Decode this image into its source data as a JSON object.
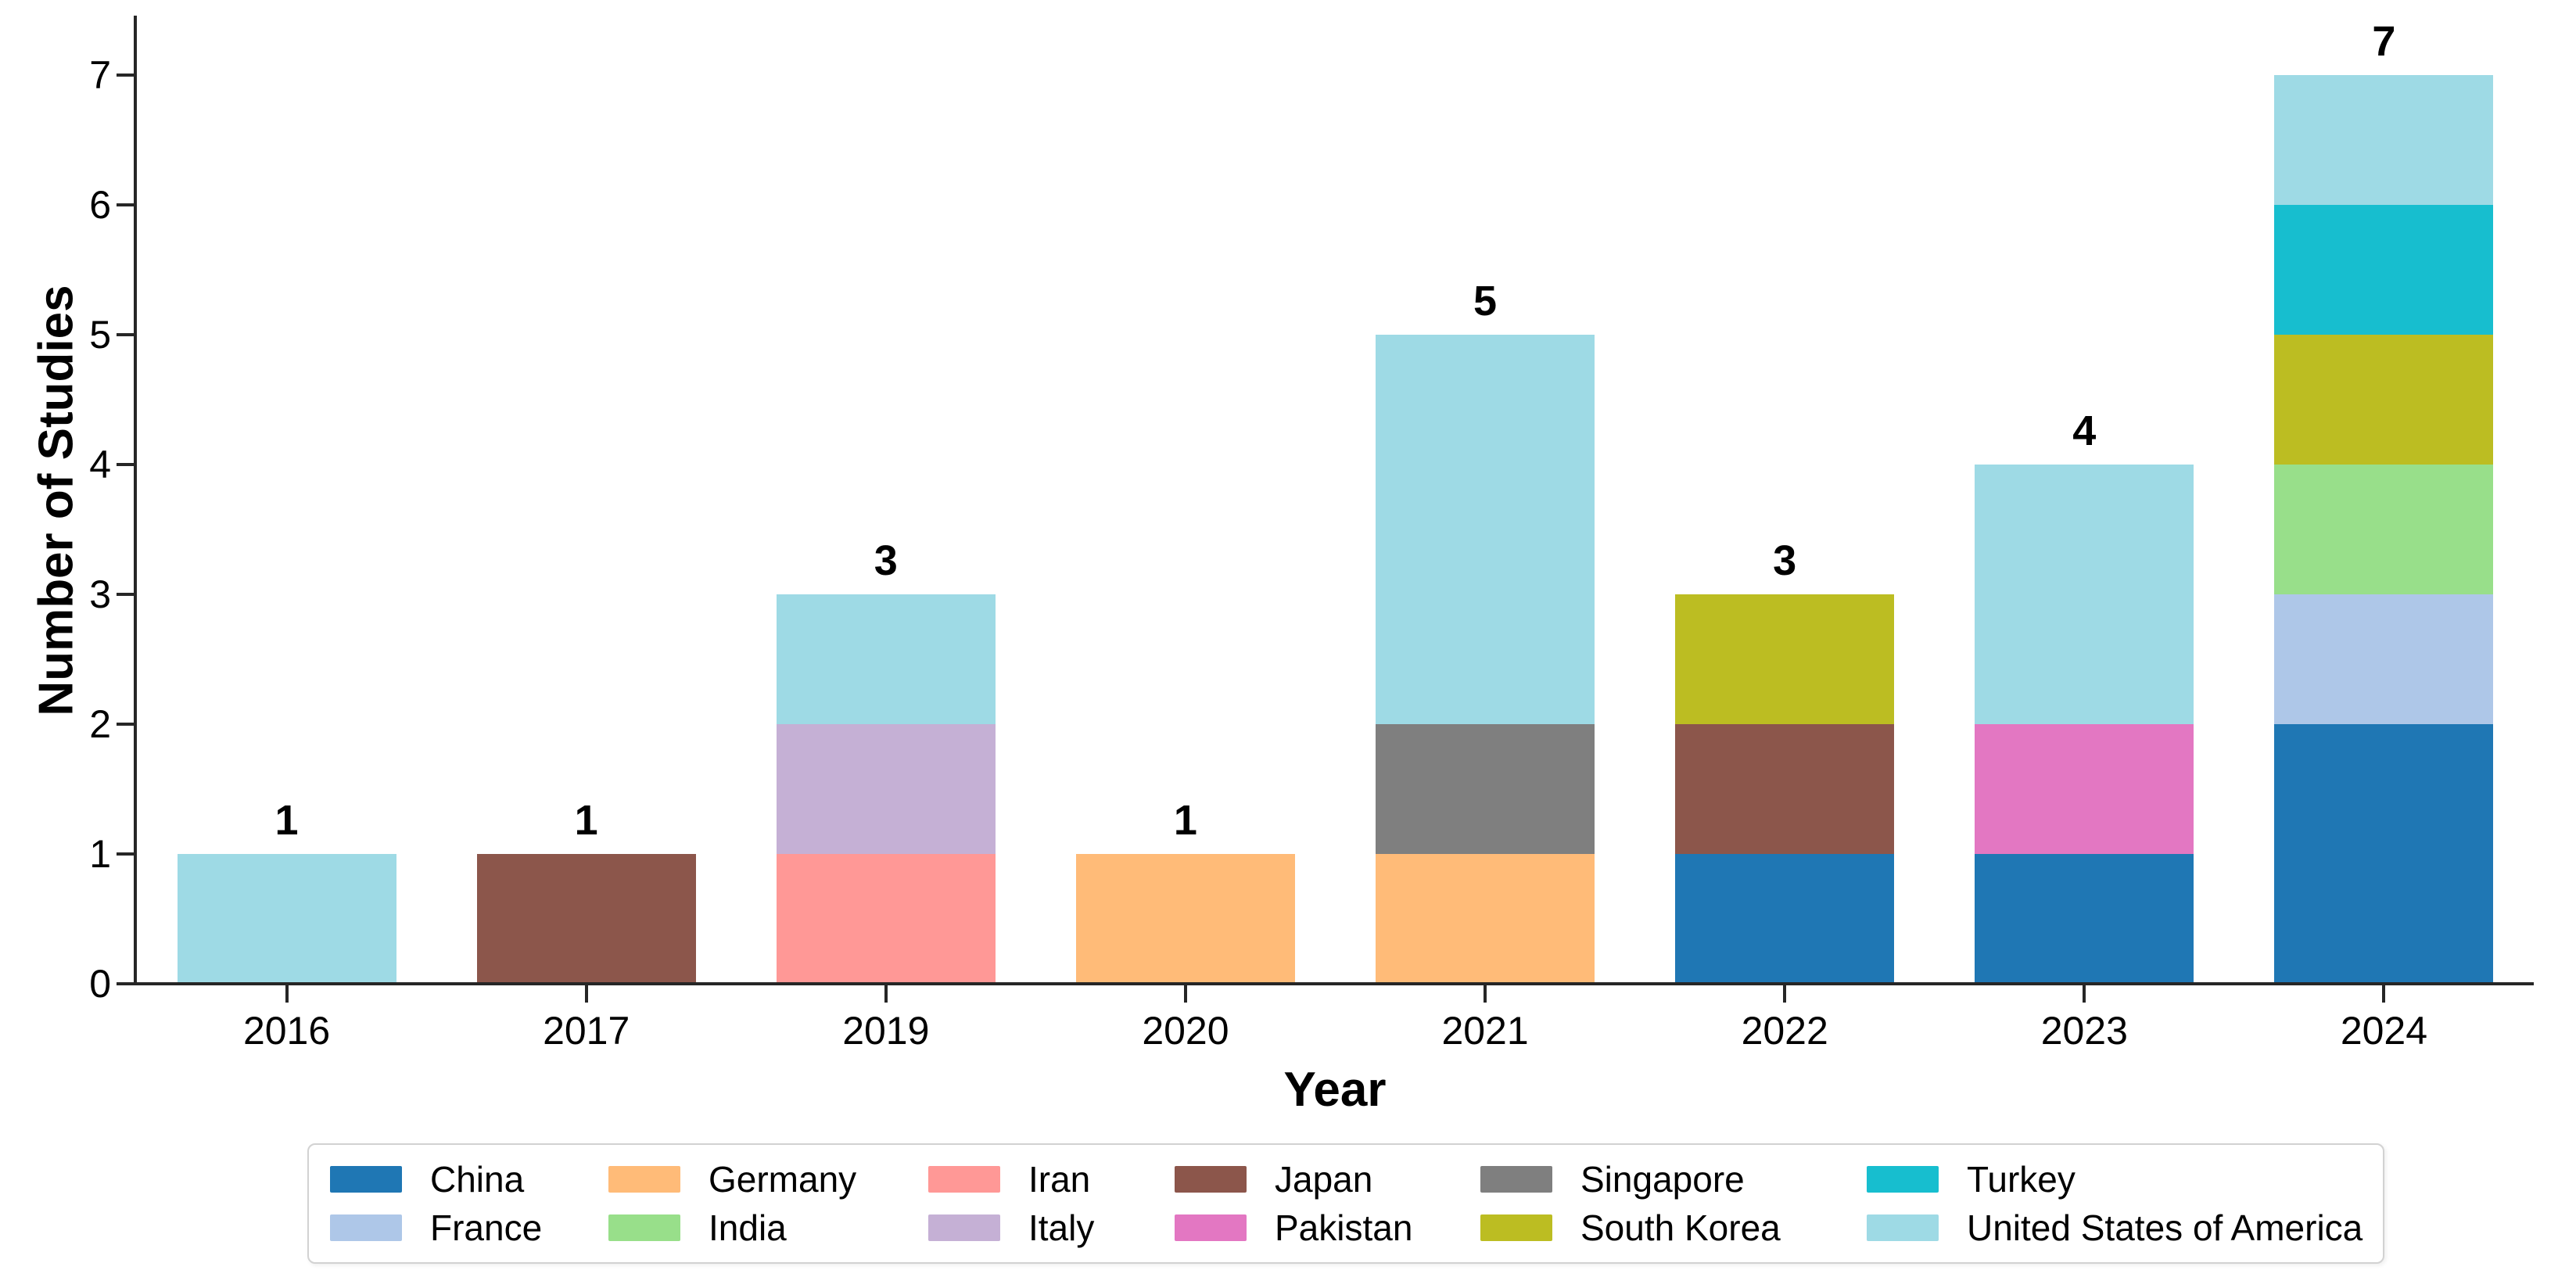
{
  "figure": {
    "xlabel": "Year",
    "ylabel": "Number of Studies"
  },
  "chart_data": {
    "type": "bar",
    "stacked": true,
    "title": "",
    "xlabel": "Year",
    "ylabel": "Number of Studies",
    "categories": [
      "2016",
      "2017",
      "2019",
      "2020",
      "2021",
      "2022",
      "2023",
      "2024"
    ],
    "series": [
      {
        "name": "China",
        "color": "#1f77b4",
        "values": [
          0,
          0,
          0,
          0,
          0,
          1,
          1,
          2
        ]
      },
      {
        "name": "France",
        "color": "#aec7e8",
        "values": [
          0,
          0,
          0,
          0,
          0,
          0,
          0,
          1
        ]
      },
      {
        "name": "Germany",
        "color": "#ffbb78",
        "values": [
          0,
          0,
          0,
          1,
          1,
          0,
          0,
          0
        ]
      },
      {
        "name": "India",
        "color": "#98df8a",
        "values": [
          0,
          0,
          0,
          0,
          0,
          0,
          0,
          1
        ]
      },
      {
        "name": "Iran",
        "color": "#ff9896",
        "values": [
          0,
          0,
          1,
          0,
          0,
          0,
          0,
          0
        ]
      },
      {
        "name": "Italy",
        "color": "#c5b0d5",
        "values": [
          0,
          0,
          1,
          0,
          0,
          0,
          0,
          0
        ]
      },
      {
        "name": "Japan",
        "color": "#8c564b",
        "values": [
          0,
          1,
          0,
          0,
          0,
          1,
          0,
          0
        ]
      },
      {
        "name": "Pakistan",
        "color": "#e377c2",
        "values": [
          0,
          0,
          0,
          0,
          0,
          0,
          1,
          0
        ]
      },
      {
        "name": "Singapore",
        "color": "#7f7f7f",
        "values": [
          0,
          0,
          0,
          0,
          1,
          0,
          0,
          0
        ]
      },
      {
        "name": "South Korea",
        "color": "#bcbd22",
        "values": [
          0,
          0,
          0,
          0,
          0,
          1,
          0,
          1
        ]
      },
      {
        "name": "Turkey",
        "color": "#17becf",
        "values": [
          0,
          0,
          0,
          0,
          0,
          0,
          0,
          1
        ]
      },
      {
        "name": "United States of America",
        "color": "#9edae5",
        "values": [
          1,
          0,
          1,
          0,
          3,
          0,
          2,
          1
        ]
      }
    ],
    "bar_totals": [
      1,
      1,
      3,
      1,
      5,
      3,
      4,
      7
    ],
    "yticks": [
      0,
      1,
      2,
      3,
      4,
      5,
      6,
      7
    ],
    "ylim": [
      0,
      7.45
    ],
    "grid": false,
    "legend_position": "bottom",
    "legend_columns": 6,
    "legend_rows": [
      [
        "China",
        "Germany",
        "Iran",
        "Japan",
        "Singapore",
        "Turkey"
      ],
      [
        "France",
        "India",
        "Italy",
        "Pakistan",
        "South Korea",
        "United States of America"
      ]
    ]
  }
}
